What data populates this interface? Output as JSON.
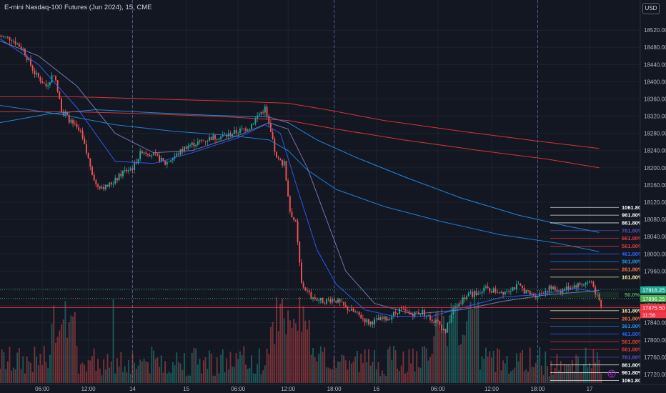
{
  "title": "E-mini Nasdaq-100 Futures (Jun 2024), 15, CME",
  "currency_button": "USD",
  "chart_data": {
    "type": "candlestick",
    "ylim": [
      17700,
      18560
    ],
    "y_ticks": [
      18520,
      18480,
      18440,
      18400,
      18360,
      18320,
      18280,
      18240,
      18200,
      18160,
      18120,
      18080,
      18040,
      18000,
      17960,
      17920,
      17880,
      17840,
      17800,
      17760,
      17720
    ],
    "x_ticks": [
      {
        "label": "06:00",
        "t": 22
      },
      {
        "label": "12:00",
        "t": 46
      },
      {
        "label": "14",
        "t": 69
      },
      {
        "label": "15",
        "t": 97
      },
      {
        "label": "06:00",
        "t": 124
      },
      {
        "label": "12:00",
        "t": 150
      },
      {
        "label": "18:00",
        "t": 174
      },
      {
        "label": "16",
        "t": 196
      },
      {
        "label": "06:00",
        "t": 228
      },
      {
        "label": "12:00",
        "t": 256
      },
      {
        "label": "18:00",
        "t": 280
      },
      {
        "label": "17",
        "t": 307
      }
    ],
    "session_breaks": [
      69,
      174,
      280
    ],
    "close_path": [
      [
        0,
        18505
      ],
      [
        6,
        18500
      ],
      [
        12,
        18475
      ],
      [
        18,
        18420
      ],
      [
        24,
        18390
      ],
      [
        28,
        18420
      ],
      [
        32,
        18335
      ],
      [
        38,
        18300
      ],
      [
        42,
        18280
      ],
      [
        46,
        18220
      ],
      [
        50,
        18160
      ],
      [
        55,
        18155
      ],
      [
        60,
        18170
      ],
      [
        64,
        18190
      ],
      [
        69,
        18200
      ],
      [
        74,
        18240
      ],
      [
        80,
        18230
      ],
      [
        86,
        18210
      ],
      [
        92,
        18230
      ],
      [
        97,
        18250
      ],
      [
        104,
        18260
      ],
      [
        110,
        18270
      ],
      [
        118,
        18275
      ],
      [
        124,
        18285
      ],
      [
        130,
        18295
      ],
      [
        134,
        18320
      ],
      [
        138,
        18338
      ],
      [
        141,
        18280
      ],
      [
        144,
        18220
      ],
      [
        148,
        18210
      ],
      [
        151,
        18100
      ],
      [
        154,
        18070
      ],
      [
        157,
        17930
      ],
      [
        162,
        17900
      ],
      [
        168,
        17890
      ],
      [
        174,
        17895
      ],
      [
        180,
        17875
      ],
      [
        186,
        17860
      ],
      [
        192,
        17840
      ],
      [
        196,
        17845
      ],
      [
        202,
        17850
      ],
      [
        208,
        17870
      ],
      [
        214,
        17860
      ],
      [
        220,
        17865
      ],
      [
        224,
        17850
      ],
      [
        228,
        17840
      ],
      [
        232,
        17820
      ],
      [
        236,
        17870
      ],
      [
        242,
        17900
      ],
      [
        248,
        17910
      ],
      [
        252,
        17920
      ],
      [
        256,
        17915
      ],
      [
        262,
        17912
      ],
      [
        266,
        17920
      ],
      [
        270,
        17925
      ],
      [
        276,
        17905
      ],
      [
        280,
        17905
      ],
      [
        286,
        17920
      ],
      [
        292,
        17915
      ],
      [
        298,
        17925
      ],
      [
        303,
        17930
      ],
      [
        308,
        17935
      ],
      [
        311,
        17900
      ],
      [
        313,
        17875
      ]
    ],
    "moving_averages": [
      {
        "color": "#2962ff",
        "path": [
          [
            0,
            18500
          ],
          [
            20,
            18440
          ],
          [
            40,
            18340
          ],
          [
            60,
            18215
          ],
          [
            80,
            18210
          ],
          [
            100,
            18235
          ],
          [
            124,
            18270
          ],
          [
            138,
            18300
          ],
          [
            146,
            18280
          ],
          [
            155,
            18150
          ],
          [
            165,
            18010
          ],
          [
            175,
            17930
          ],
          [
            190,
            17870
          ],
          [
            205,
            17855
          ],
          [
            225,
            17855
          ],
          [
            245,
            17880
          ],
          [
            262,
            17900
          ],
          [
            280,
            17905
          ],
          [
            300,
            17920
          ],
          [
            312,
            17910
          ]
        ]
      },
      {
        "color": "#7a7fbf",
        "path": [
          [
            0,
            18495
          ],
          [
            20,
            18460
          ],
          [
            40,
            18390
          ],
          [
            60,
            18280
          ],
          [
            80,
            18235
          ],
          [
            100,
            18240
          ],
          [
            124,
            18275
          ],
          [
            140,
            18305
          ],
          [
            150,
            18290
          ],
          [
            160,
            18200
          ],
          [
            170,
            18080
          ],
          [
            180,
            17960
          ],
          [
            195,
            17885
          ],
          [
            215,
            17860
          ],
          [
            240,
            17870
          ],
          [
            262,
            17890
          ],
          [
            285,
            17905
          ],
          [
            312,
            17915
          ]
        ]
      },
      {
        "color": "#1e88e5",
        "path": [
          [
            0,
            18345
          ],
          [
            30,
            18325
          ],
          [
            60,
            18300
          ],
          [
            90,
            18285
          ],
          [
            120,
            18275
          ],
          [
            140,
            18265
          ],
          [
            150,
            18240
          ],
          [
            160,
            18195
          ],
          [
            175,
            18150
          ],
          [
            200,
            18110
          ],
          [
            230,
            18075
          ],
          [
            260,
            18045
          ],
          [
            290,
            18025
          ],
          [
            312,
            18005
          ]
        ]
      },
      {
        "color": "#2196f3",
        "path": [
          [
            0,
            18305
          ],
          [
            25,
            18325
          ],
          [
            50,
            18335
          ],
          [
            80,
            18328
          ],
          [
            110,
            18322
          ],
          [
            140,
            18318
          ],
          [
            150,
            18305
          ],
          [
            165,
            18265
          ],
          [
            185,
            18225
          ],
          [
            210,
            18180
          ],
          [
            240,
            18130
          ],
          [
            270,
            18090
          ],
          [
            295,
            18065
          ],
          [
            312,
            18050
          ]
        ]
      },
      {
        "color": "#e53935",
        "path": [
          [
            0,
            18365
          ],
          [
            40,
            18365
          ],
          [
            80,
            18360
          ],
          [
            120,
            18355
          ],
          [
            150,
            18350
          ],
          [
            170,
            18335
          ],
          [
            200,
            18310
          ],
          [
            240,
            18285
          ],
          [
            280,
            18262
          ],
          [
            312,
            18245
          ]
        ]
      },
      {
        "color": "#e53935",
        "path": [
          [
            0,
            18330
          ],
          [
            40,
            18330
          ],
          [
            80,
            18325
          ],
          [
            120,
            18318
          ],
          [
            150,
            18310
          ],
          [
            175,
            18290
          ],
          [
            210,
            18265
          ],
          [
            250,
            18240
          ],
          [
            285,
            18220
          ],
          [
            312,
            18200
          ]
        ]
      }
    ],
    "fib_levels_upper": [
      {
        "label": "1061.80%",
        "y": 18108,
        "color": "#ffffff"
      },
      {
        "label": "961.80%",
        "y": 18090,
        "color": "#ffffff"
      },
      {
        "label": "861.80%",
        "y": 18072,
        "color": "#ffffff"
      },
      {
        "label": "761.80%",
        "y": 18054,
        "color": "#5c4ebf"
      },
      {
        "label": "661.80%",
        "y": 18036,
        "color": "#e53935"
      },
      {
        "label": "561.80%",
        "y": 18018,
        "color": "#e53935"
      },
      {
        "label": "461.80%",
        "y": 18000,
        "color": "#2962ff"
      },
      {
        "label": "361.80%",
        "y": 17982,
        "color": "#2196f3"
      },
      {
        "label": "261.80%",
        "y": 17964,
        "color": "#ff7043"
      },
      {
        "label": "161.80%",
        "y": 17946,
        "color": "#fff59d"
      }
    ],
    "fib_levels_lower": [
      {
        "label": "161.80%",
        "y": 17868,
        "color": "#fff59d"
      },
      {
        "label": "261.80%",
        "y": 17850,
        "color": "#ff7043"
      },
      {
        "label": "361.80%",
        "y": 17832,
        "color": "#2196f3"
      },
      {
        "label": "461.80%",
        "y": 17814,
        "color": "#2962ff"
      },
      {
        "label": "561.80%",
        "y": 17796,
        "color": "#e53935"
      },
      {
        "label": "661.80%",
        "y": 17778,
        "color": "#e53935"
      },
      {
        "label": "761.80%",
        "y": 17760,
        "color": "#5c4ebf"
      },
      {
        "label": "861.80%",
        "y": 17742,
        "color": "#ffffff"
      },
      {
        "label": "961.80%",
        "y": 17724,
        "color": "#ffffff"
      },
      {
        "label": "1061.80%",
        "y": 17706,
        "color": "#ffffff"
      }
    ],
    "fib_mid_label": "50.0%",
    "fib_mid_y": 17905,
    "price_lines": [
      {
        "y": 17916.25,
        "label": "17916.25",
        "color": "#22ab94",
        "style": "dotted"
      },
      {
        "y": 17896.25,
        "label": "17896.25",
        "color": "#4caf50",
        "style": "dotted"
      },
      {
        "y": 17875.5,
        "label": "17875.50",
        "color": "#f23645",
        "style": "solid"
      }
    ],
    "countdown": "11:56",
    "bull_color": "#26a69a",
    "bear_color": "#ef5350"
  }
}
